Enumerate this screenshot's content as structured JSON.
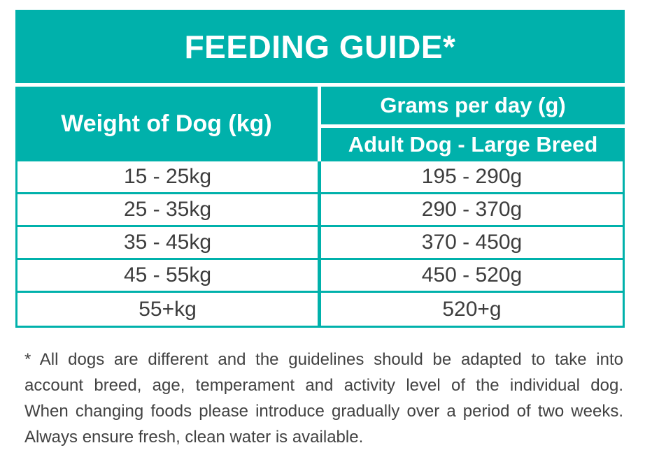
{
  "colors": {
    "teal": "#00b1ab",
    "row_text": "#3d3d3d",
    "footnote_text": "#424242",
    "background": "#ffffff",
    "header_text": "#ffffff"
  },
  "title": "FEEDING GUIDE*",
  "table": {
    "weight_header": "Weight of Dog (kg)",
    "grams_header": "Grams per day (g)",
    "column_subheader": "Adult Dog - Large Breed",
    "rows": [
      {
        "weight": "15 - 25kg",
        "grams": "195 - 290g"
      },
      {
        "weight": "25 - 35kg",
        "grams": "290 - 370g"
      },
      {
        "weight": "35 - 45kg",
        "grams": "370 - 450g"
      },
      {
        "weight": "45 - 55kg",
        "grams": "450 - 520g"
      },
      {
        "weight": "55+kg",
        "grams": "520+g"
      }
    ]
  },
  "footnote": {
    "lines": [
      "* All dogs are different and the guidelines should be adapted to take into",
      "account breed, age, temperament and activity level of the individual dog.",
      "When changing foods please introduce gradually over a period of two weeks.",
      "Always ensure fresh, clean water is available."
    ]
  }
}
